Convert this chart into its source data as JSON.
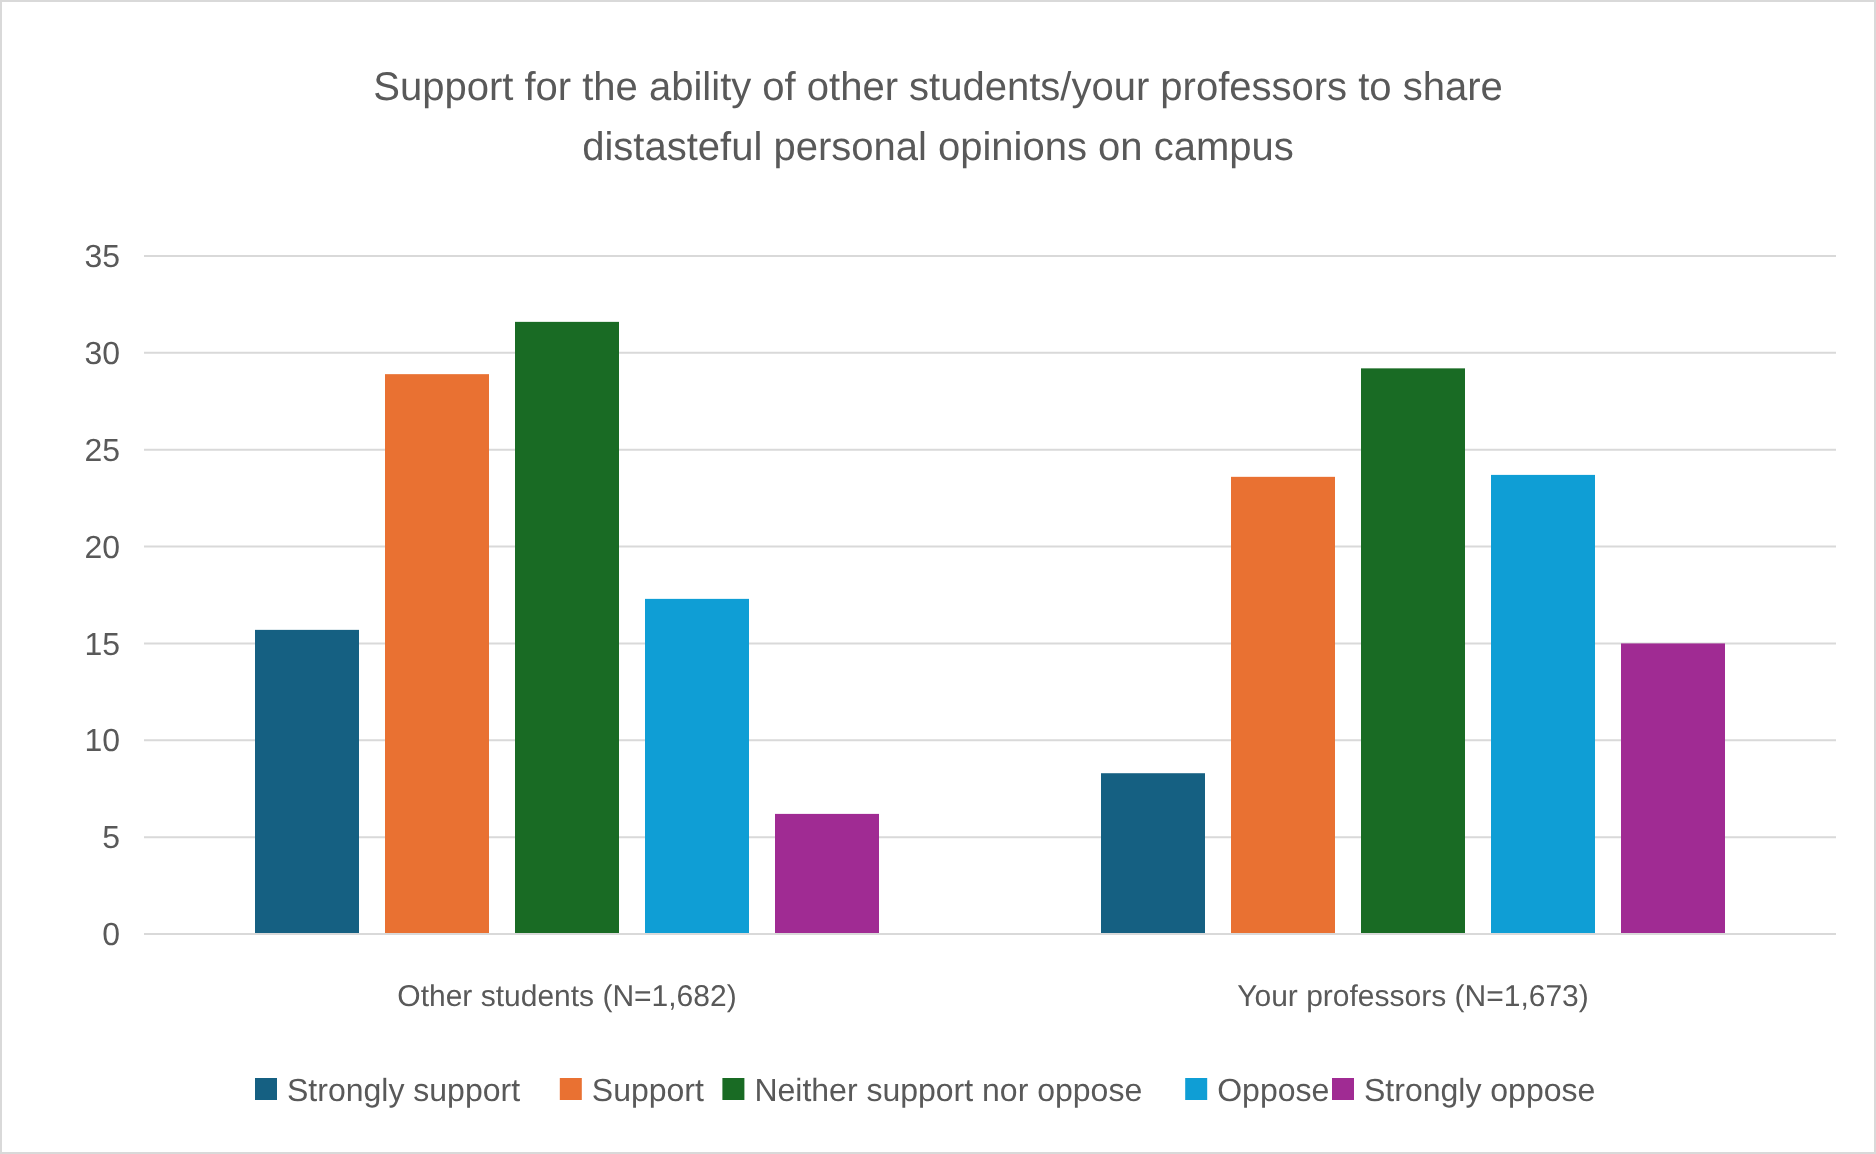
{
  "chart_data": {
    "type": "bar",
    "title": "Support for the ability of other students/your professors to share distasteful personal opinions on campus",
    "categories": [
      "Other students (N=1,682)",
      "Your professors (N=1,673)"
    ],
    "series": [
      {
        "name": "Strongly support",
        "color": "#156082",
        "values": [
          15.7,
          8.3
        ]
      },
      {
        "name": "Support",
        "color": "#e97132",
        "values": [
          28.9,
          23.6
        ]
      },
      {
        "name": "Neither support nor oppose",
        "color": "#196b24",
        "values": [
          31.6,
          29.2
        ]
      },
      {
        "name": "Oppose",
        "color": "#0f9ed5",
        "values": [
          17.3,
          23.7
        ]
      },
      {
        "name": "Strongly oppose",
        "color": "#a02b93",
        "values": [
          6.2,
          15.0
        ]
      }
    ],
    "ylim": [
      0,
      35
    ],
    "yticks": [
      0,
      5,
      10,
      15,
      20,
      25,
      30,
      35
    ],
    "grid": "y",
    "legend": "bottom"
  }
}
